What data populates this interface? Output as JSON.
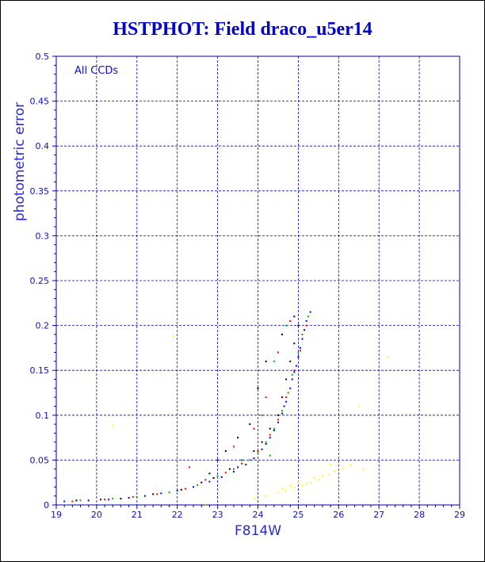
{
  "title": "HSTPHOT: Field draco_u5er14",
  "chart_data": {
    "type": "scatter",
    "title": "HSTPHOT: Field draco_u5er14",
    "xlabel": "F814W",
    "ylabel": "photometric error",
    "annotation": "All CCDs",
    "xlim": [
      19,
      29
    ],
    "ylim": [
      0,
      0.5
    ],
    "xticks": [
      "19",
      "20",
      "21",
      "22",
      "23",
      "24",
      "25",
      "26",
      "27",
      "28",
      "29"
    ],
    "yticks": [
      "0",
      "0.05",
      "0.1",
      "0.15",
      "0.2",
      "0.25",
      "0.3",
      "0.35",
      "0.4",
      "0.45",
      "0.5"
    ],
    "grid": true,
    "series": [
      {
        "color": "#0000ff",
        "points": [
          [
            19.2,
            0.004
          ],
          [
            19.8,
            0.005
          ],
          [
            20.3,
            0.006
          ],
          [
            20.8,
            0.008
          ],
          [
            21.2,
            0.01
          ],
          [
            21.6,
            0.013
          ],
          [
            22.0,
            0.016
          ],
          [
            22.4,
            0.02
          ],
          [
            22.8,
            0.026
          ],
          [
            23.1,
            0.031
          ],
          [
            23.4,
            0.037
          ],
          [
            23.7,
            0.045
          ],
          [
            23.9,
            0.052
          ],
          [
            24.1,
            0.062
          ],
          [
            24.3,
            0.075
          ],
          [
            24.5,
            0.092
          ],
          [
            24.6,
            0.102
          ],
          [
            24.7,
            0.115
          ],
          [
            24.8,
            0.13
          ],
          [
            24.9,
            0.148
          ],
          [
            25.0,
            0.165
          ],
          [
            25.1,
            0.185
          ],
          [
            25.2,
            0.205
          ],
          [
            25.3,
            0.215
          ],
          [
            24.4,
            0.083
          ],
          [
            24.2,
            0.068
          ],
          [
            24.85,
            0.14
          ],
          [
            25.05,
            0.175
          ],
          [
            25.15,
            0.195
          ],
          [
            23.5,
            0.042
          ],
          [
            24.65,
            0.11
          ],
          [
            24.95,
            0.155
          ]
        ]
      },
      {
        "color": "#000000",
        "points": [
          [
            19.5,
            0.005
          ],
          [
            20.1,
            0.006
          ],
          [
            20.6,
            0.007
          ],
          [
            21.4,
            0.012
          ],
          [
            22.1,
            0.017
          ],
          [
            22.6,
            0.025
          ],
          [
            22.9,
            0.03
          ],
          [
            23.3,
            0.04
          ],
          [
            23.6,
            0.05
          ],
          [
            23.9,
            0.06
          ],
          [
            24.1,
            0.07
          ],
          [
            24.3,
            0.085
          ],
          [
            24.5,
            0.1
          ],
          [
            24.6,
            0.12
          ],
          [
            24.7,
            0.14
          ],
          [
            24.8,
            0.16
          ],
          [
            24.9,
            0.18
          ],
          [
            25.0,
            0.2
          ],
          [
            23.2,
            0.06
          ],
          [
            23.5,
            0.075
          ],
          [
            23.8,
            0.09
          ],
          [
            24.0,
            0.13
          ],
          [
            24.2,
            0.16
          ],
          [
            24.6,
            0.19
          ],
          [
            24.9,
            0.21
          ],
          [
            22.8,
            0.035
          ],
          [
            23.0,
            0.05
          ]
        ]
      },
      {
        "color": "#00b000",
        "points": [
          [
            19.6,
            0.005
          ],
          [
            20.4,
            0.007
          ],
          [
            21.0,
            0.009
          ],
          [
            21.8,
            0.014
          ],
          [
            22.5,
            0.022
          ],
          [
            23.0,
            0.032
          ],
          [
            23.4,
            0.04
          ],
          [
            23.8,
            0.05
          ],
          [
            24.0,
            0.058
          ],
          [
            24.2,
            0.07
          ],
          [
            24.4,
            0.085
          ],
          [
            24.6,
            0.105
          ],
          [
            24.75,
            0.125
          ],
          [
            24.85,
            0.145
          ],
          [
            25.0,
            0.17
          ],
          [
            25.1,
            0.19
          ],
          [
            25.25,
            0.21
          ],
          [
            24.1,
            0.1
          ],
          [
            24.4,
            0.16
          ],
          [
            24.7,
            0.2
          ],
          [
            23.6,
            0.05
          ],
          [
            24.3,
            0.055
          ]
        ]
      },
      {
        "color": "#ff0000",
        "points": [
          [
            19.4,
            0.004
          ],
          [
            20.2,
            0.006
          ],
          [
            20.9,
            0.009
          ],
          [
            21.5,
            0.012
          ],
          [
            22.2,
            0.018
          ],
          [
            22.7,
            0.028
          ],
          [
            23.2,
            0.036
          ],
          [
            23.6,
            0.046
          ],
          [
            24.0,
            0.06
          ],
          [
            24.3,
            0.078
          ],
          [
            24.5,
            0.095
          ],
          [
            24.7,
            0.12
          ],
          [
            24.9,
            0.15
          ],
          [
            25.05,
            0.172
          ],
          [
            25.2,
            0.2
          ],
          [
            23.9,
            0.085
          ],
          [
            24.2,
            0.12
          ],
          [
            24.5,
            0.17
          ],
          [
            24.8,
            0.205
          ],
          [
            22.3,
            0.042
          ],
          [
            23.4,
            0.065
          ]
        ]
      },
      {
        "color": "#ffff00",
        "points": [
          [
            23.9,
            0.007
          ],
          [
            24.2,
            0.01
          ],
          [
            24.5,
            0.014
          ],
          [
            24.7,
            0.016
          ],
          [
            24.9,
            0.019
          ],
          [
            25.1,
            0.022
          ],
          [
            25.3,
            0.025
          ],
          [
            25.5,
            0.028
          ],
          [
            25.6,
            0.032
          ],
          [
            25.75,
            0.034
          ],
          [
            25.9,
            0.038
          ],
          [
            26.1,
            0.041
          ],
          [
            25.4,
            0.03
          ],
          [
            25.0,
            0.026
          ],
          [
            24.8,
            0.021
          ],
          [
            26.3,
            0.045
          ],
          [
            26.6,
            0.04
          ],
          [
            27.2,
            0.165
          ],
          [
            26.5,
            0.11
          ],
          [
            21.9,
            0.188
          ],
          [
            20.4,
            0.089
          ],
          [
            22.7,
            0.001
          ],
          [
            25.8,
            0.045
          ],
          [
            24.6,
            0.018
          ],
          [
            25.2,
            0.024
          ]
        ]
      }
    ]
  }
}
